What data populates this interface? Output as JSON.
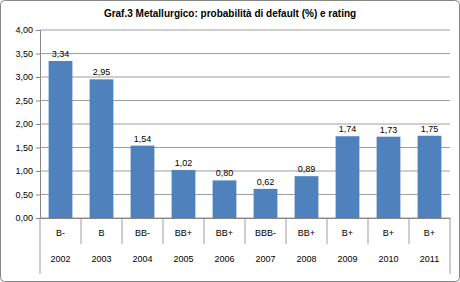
{
  "chart_data": {
    "type": "bar",
    "title": "Graf.3  Metallurgico: probabilità di default (%) e rating",
    "categories": [
      "2002",
      "2003",
      "2004",
      "2005",
      "2006",
      "2007",
      "2008",
      "2009",
      "2010",
      "2011"
    ],
    "ratings": [
      "B-",
      "B",
      "BB-",
      "BB+",
      "BB+",
      "BBB-",
      "BB+",
      "B+",
      "B+",
      "B+"
    ],
    "values": [
      3.34,
      2.95,
      1.54,
      1.02,
      0.8,
      0.62,
      0.89,
      1.74,
      1.73,
      1.75
    ],
    "value_labels": [
      "3,34",
      "2,95",
      "1,54",
      "1,02",
      "0,80",
      "0,62",
      "0,89",
      "1,74",
      "1,73",
      "1,75"
    ],
    "color": "#4f81bd",
    "ylim": [
      0,
      4
    ],
    "yticks": [
      {
        "value": 0,
        "label": "0,00"
      },
      {
        "value": 0.5,
        "label": "0,50"
      },
      {
        "value": 1,
        "label": "1,00"
      },
      {
        "value": 1.5,
        "label": "1,50"
      },
      {
        "value": 2,
        "label": "2,00"
      },
      {
        "value": 2.5,
        "label": "2,50"
      },
      {
        "value": 3,
        "label": "3,00"
      },
      {
        "value": 3.5,
        "label": "3,50"
      },
      {
        "value": 4,
        "label": "4,00"
      }
    ],
    "grid": true,
    "data_labels": true
  }
}
